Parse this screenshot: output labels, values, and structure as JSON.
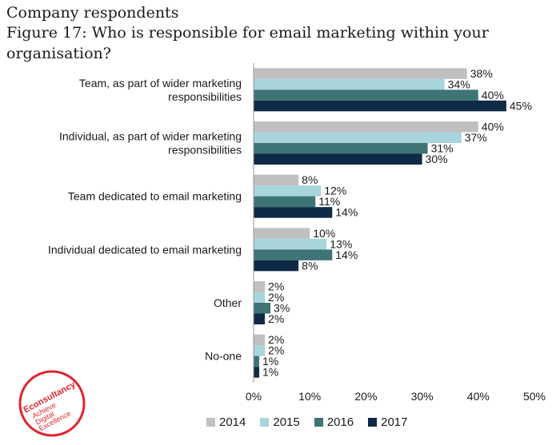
{
  "header": {
    "subtitle": "Company respondents",
    "title": "Figure 17: Who is responsible for email marketing within your organisation?"
  },
  "logo": {
    "brand": "Econsultancy",
    "tagline_1": "Achieve",
    "tagline_2": "Digital",
    "tagline_3": "Excellence",
    "color": "#e0262f"
  },
  "chart_data": {
    "type": "bar",
    "orientation": "horizontal",
    "categories": [
      [
        "Team, as part of wider marketing",
        "responsibilities"
      ],
      [
        "Individual, as part of wider marketing",
        "responsibilities"
      ],
      [
        "Team dedicated to email marketing"
      ],
      [
        "Individual dedicated to email marketing"
      ],
      [
        "Other"
      ],
      [
        "No-one"
      ]
    ],
    "series": [
      {
        "name": "2014",
        "color": "#c0c0c0",
        "values": [
          38,
          40,
          8,
          10,
          2,
          2
        ]
      },
      {
        "name": "2015",
        "color": "#a8d4dc",
        "values": [
          34,
          37,
          12,
          13,
          2,
          2
        ]
      },
      {
        "name": "2016",
        "color": "#3f7476",
        "values": [
          40,
          31,
          11,
          14,
          3,
          1
        ]
      },
      {
        "name": "2017",
        "color": "#0e2a47",
        "values": [
          45,
          30,
          14,
          8,
          2,
          1
        ]
      }
    ],
    "value_suffix": "%",
    "xlim": [
      0,
      50
    ],
    "xticks": [
      0,
      10,
      20,
      30,
      40,
      50
    ],
    "xtick_labels": [
      "0%",
      "10%",
      "20%",
      "30%",
      "40%",
      "50%"
    ],
    "grid": false,
    "legend_position": "bottom"
  }
}
